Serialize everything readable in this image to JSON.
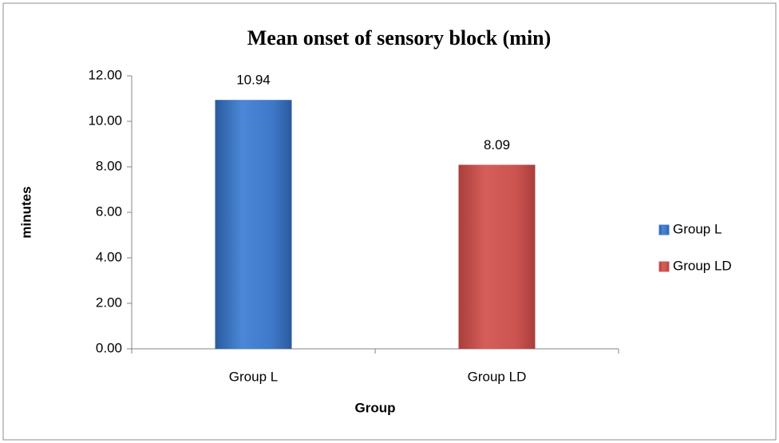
{
  "chart_data": {
    "type": "bar",
    "title": "Mean onset of sensory block (min)",
    "x_label": "Group",
    "y_label": "minutes",
    "categories": [
      "Group L",
      "Group LD"
    ],
    "series": [
      {
        "name": "Group L",
        "color": "#3f78c8",
        "values": [
          10.94,
          null
        ]
      },
      {
        "name": "Group LD",
        "color": "#cc5450",
        "values": [
          null,
          8.09
        ]
      }
    ],
    "ylim": [
      0,
      12
    ],
    "yticks": [
      {
        "value": 0,
        "label": "0.00"
      },
      {
        "value": 2,
        "label": "2.00"
      },
      {
        "value": 4,
        "label": "4.00"
      },
      {
        "value": 6,
        "label": "6.00"
      },
      {
        "value": 8,
        "label": "8.00"
      },
      {
        "value": 10,
        "label": "10.00"
      },
      {
        "value": 12,
        "label": "12.00"
      }
    ],
    "grid": false,
    "legend": "right"
  }
}
